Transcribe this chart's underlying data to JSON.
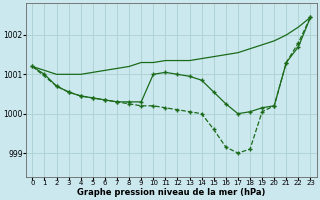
{
  "xlabel": "Graphe pression niveau de la mer (hPa)",
  "background_color": "#cce8ef",
  "grid_color": "#b0d4d4",
  "line_color": "#1a6b1a",
  "ylim": [
    998.4,
    1002.8
  ],
  "yticks": [
    999,
    1000,
    1001,
    1002
  ],
  "xlim": [
    -0.5,
    23.5
  ],
  "x_ticks": [
    0,
    1,
    2,
    3,
    4,
    5,
    6,
    7,
    8,
    9,
    10,
    11,
    12,
    13,
    14,
    15,
    16,
    17,
    18,
    19,
    20,
    21,
    22,
    23
  ],
  "series1_x": [
    0,
    1,
    2,
    3,
    4,
    5,
    6,
    7,
    8,
    9,
    10,
    11,
    12,
    13,
    14,
    15,
    16,
    17,
    18,
    19,
    20,
    21,
    22,
    23
  ],
  "series1_y": [
    1001.2,
    1001.1,
    1001.0,
    1001.0,
    1001.0,
    1001.05,
    1001.1,
    1001.15,
    1001.2,
    1001.3,
    1001.3,
    1001.35,
    1001.35,
    1001.35,
    1001.4,
    1001.45,
    1001.5,
    1001.55,
    1001.65,
    1001.75,
    1001.85,
    1002.0,
    1002.2,
    1002.45
  ],
  "series2_x": [
    0,
    1,
    2,
    3,
    4,
    5,
    6,
    7,
    8,
    9,
    10,
    11,
    12,
    13,
    14,
    15,
    16,
    17,
    18,
    19,
    20,
    21,
    22,
    23
  ],
  "series2_y": [
    1001.2,
    1001.0,
    1000.7,
    1000.55,
    1000.45,
    1000.4,
    1000.35,
    1000.3,
    1000.3,
    1000.3,
    1001.0,
    1001.05,
    1001.0,
    1000.95,
    1000.85,
    1000.55,
    1000.25,
    1000.0,
    1000.05,
    1000.15,
    1000.2,
    1001.3,
    1001.7,
    1002.45
  ],
  "series3_x": [
    0,
    2,
    3,
    4,
    5,
    6,
    7,
    8,
    9,
    10,
    11,
    12,
    13,
    14,
    15,
    16,
    17,
    18,
    19,
    20,
    21,
    22,
    23
  ],
  "series3_y": [
    1001.2,
    1000.7,
    1000.55,
    1000.45,
    1000.4,
    1000.35,
    1000.3,
    1000.25,
    1000.2,
    1000.2,
    1000.15,
    1000.1,
    1000.05,
    1000.0,
    999.6,
    999.15,
    999.0,
    999.1,
    1000.05,
    1000.2,
    1001.3,
    1001.8,
    1002.45
  ]
}
